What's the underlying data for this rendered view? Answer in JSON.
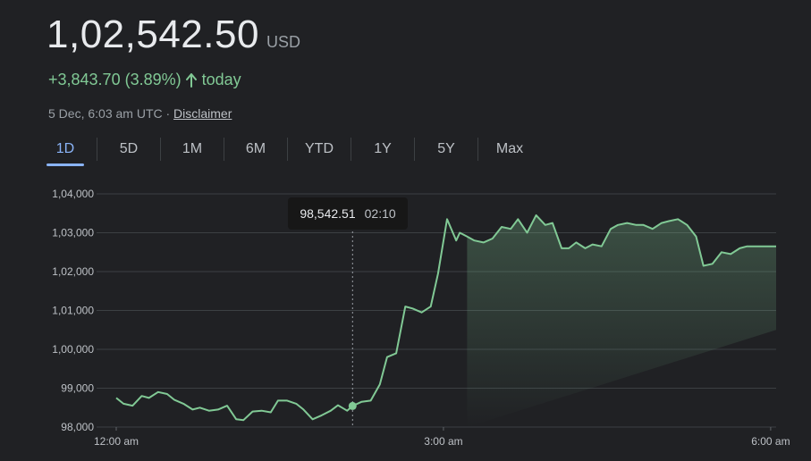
{
  "header": {
    "price": "1,02,542.50",
    "currency": "USD",
    "change": "+3,843.70 (3.89%)",
    "change_suffix": "today",
    "timestamp": "5 Dec, 6:03 am UTC · ",
    "disclaimer": "Disclaimer"
  },
  "tabs": [
    {
      "label": "1D"
    },
    {
      "label": "5D"
    },
    {
      "label": "1M"
    },
    {
      "label": "6M"
    },
    {
      "label": "YTD"
    },
    {
      "label": "1Y"
    },
    {
      "label": "5Y"
    },
    {
      "label": "Max"
    }
  ],
  "active_tab": "1D",
  "tooltip": {
    "value": "98,542.51",
    "time": "02:10"
  },
  "colors": {
    "background": "#202124",
    "line": "#81c995",
    "positive": "#81c995",
    "active_tab": "#8ab4f8",
    "grid": "#3c4043"
  },
  "chart_data": {
    "type": "area",
    "title": "",
    "xlabel": "",
    "ylabel": "",
    "x_tick_labels": [
      {
        "label": "12:00 am",
        "value": 0
      },
      {
        "label": "3:00 am",
        "value": 180
      },
      {
        "label": "6:00 am",
        "value": 360
      }
    ],
    "y_ticks": [
      98000,
      99000,
      100000,
      101000,
      102000,
      103000,
      104000
    ],
    "y_tick_labels": [
      "98,000",
      "99,000",
      "1,00,000",
      "1,01,000",
      "1,02,000",
      "1,03,000",
      "1,04,000"
    ],
    "xlim": [
      0,
      363
    ],
    "ylim": [
      98000,
      104000
    ],
    "grid": true,
    "hover_marker": {
      "x": 130,
      "y": 98542.51
    },
    "series": [
      {
        "x": [
          0,
          4,
          9,
          14,
          18,
          23,
          28,
          32,
          37,
          42,
          46,
          51,
          56,
          61,
          66,
          70,
          75,
          80,
          85,
          89,
          94,
          99,
          103,
          108,
          113,
          118,
          122,
          127,
          130,
          135,
          140,
          145,
          149,
          154,
          159,
          163,
          168,
          173,
          177,
          182,
          187,
          189,
          193,
          197,
          202,
          207,
          212,
          217,
          221,
          226,
          231,
          236,
          240,
          245,
          249,
          253,
          258,
          262,
          267,
          272,
          276,
          281,
          286,
          290,
          295,
          300,
          304,
          309,
          314,
          319,
          323,
          328,
          333,
          338,
          343,
          347,
          352,
          357,
          361,
          363
        ],
        "y": [
          98750,
          98600,
          98550,
          98800,
          98750,
          98900,
          98850,
          98700,
          98600,
          98450,
          98500,
          98420,
          98450,
          98550,
          98200,
          98180,
          98400,
          98420,
          98380,
          98680,
          98680,
          98600,
          98450,
          98200,
          98300,
          98420,
          98560,
          98420,
          98542,
          98650,
          98680,
          99100,
          99800,
          99900,
          101100,
          101050,
          100950,
          101100,
          101950,
          103350,
          102800,
          103000,
          102900,
          102800,
          102750,
          102850,
          103150,
          103100,
          103350,
          103000,
          103450,
          103200,
          103250,
          102600,
          102600,
          102750,
          102600,
          102700,
          102650,
          103100,
          103200,
          103250,
          103200,
          103200,
          103100,
          103250,
          103300,
          103350,
          103200,
          102900,
          102150,
          102200,
          102500,
          102450,
          102600,
          102650,
          102650,
          102650,
          102650,
          102650
        ]
      }
    ]
  }
}
